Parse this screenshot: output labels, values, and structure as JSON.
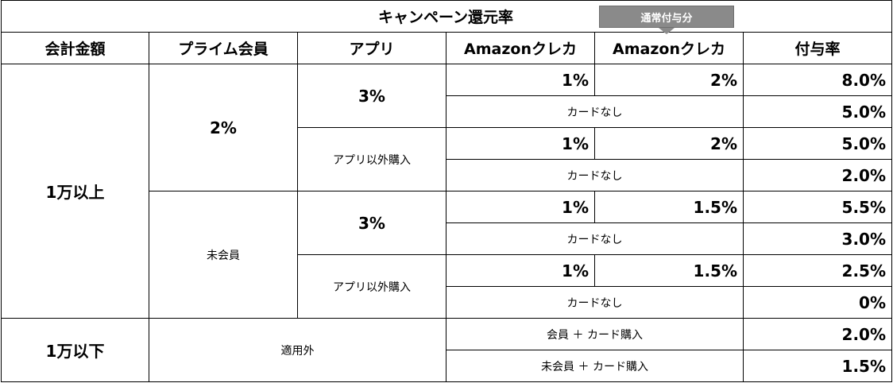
{
  "title": "キャンペーン還元率",
  "badge": "通常付与分",
  "headers": [
    "会計金額",
    "プライム会員",
    "アプリ",
    "Amazonクレカ",
    "Amazonクレカ",
    "付与率"
  ],
  "groups": {
    "over10k": "1万以上",
    "under10k": "1万以下",
    "prime": "2%",
    "nonmember": "未会員",
    "app": "3%",
    "nonapp": "アプリ以外購入",
    "excluded": "適用外"
  },
  "rows": [
    {
      "campaign": "1%",
      "normal": "2%",
      "rate": "8.0%"
    },
    {
      "nocard": "カードなし",
      "rate": "5.0%"
    },
    {
      "campaign": "1%",
      "normal": "2%",
      "rate": "5.0%"
    },
    {
      "nocard": "カードなし",
      "rate": "2.0%"
    },
    {
      "campaign": "1%",
      "normal": "1.5%",
      "rate": "5.5%"
    },
    {
      "nocard": "カードなし",
      "rate": "3.0%"
    },
    {
      "campaign": "1%",
      "normal": "1.5%",
      "rate": "2.5%"
    },
    {
      "nocard": "カードなし",
      "rate": "0%"
    },
    {
      "label": "会員 ＋ カード購入",
      "rate": "2.0%"
    },
    {
      "label": "未会員 ＋ カード購入",
      "rate": "1.5%"
    }
  ]
}
